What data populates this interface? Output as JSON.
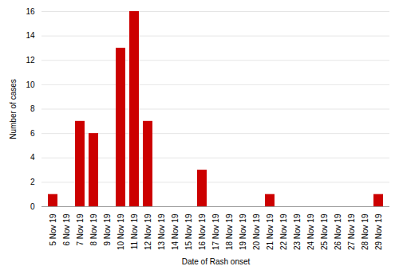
{
  "chart_data": {
    "type": "bar",
    "categories": [
      "5 Nov 19",
      "6 Nov 19",
      "7 Nov 19",
      "8 Nov 19",
      "9 Nov 19",
      "10 Nov 19",
      "11 Nov 19",
      "12 Nov 19",
      "13 Nov 19",
      "14 Nov 19",
      "15 Nov 19",
      "16 Nov 19",
      "17 Nov 19",
      "18 Nov 19",
      "19 Nov 19",
      "20 Nov 19",
      "21 Nov 19",
      "22 Nov 19",
      "23 Nov 19",
      "24 Nov 19",
      "25 Nov 19",
      "26 Nov 19",
      "27 Nov 19",
      "28 Nov 19",
      "29 Nov 19"
    ],
    "values": [
      1,
      0,
      7,
      6,
      0,
      13,
      16,
      7,
      0,
      0,
      0,
      3,
      0,
      0,
      0,
      0,
      1,
      0,
      0,
      0,
      0,
      0,
      0,
      0,
      1
    ],
    "color": "#cc0000",
    "xlabel": "Date of Rash onset",
    "ylabel": "Number of cases",
    "ylim": [
      0,
      16
    ],
    "yticks": [
      0,
      2,
      4,
      6,
      8,
      10,
      12,
      14,
      16
    ],
    "grid": true
  }
}
